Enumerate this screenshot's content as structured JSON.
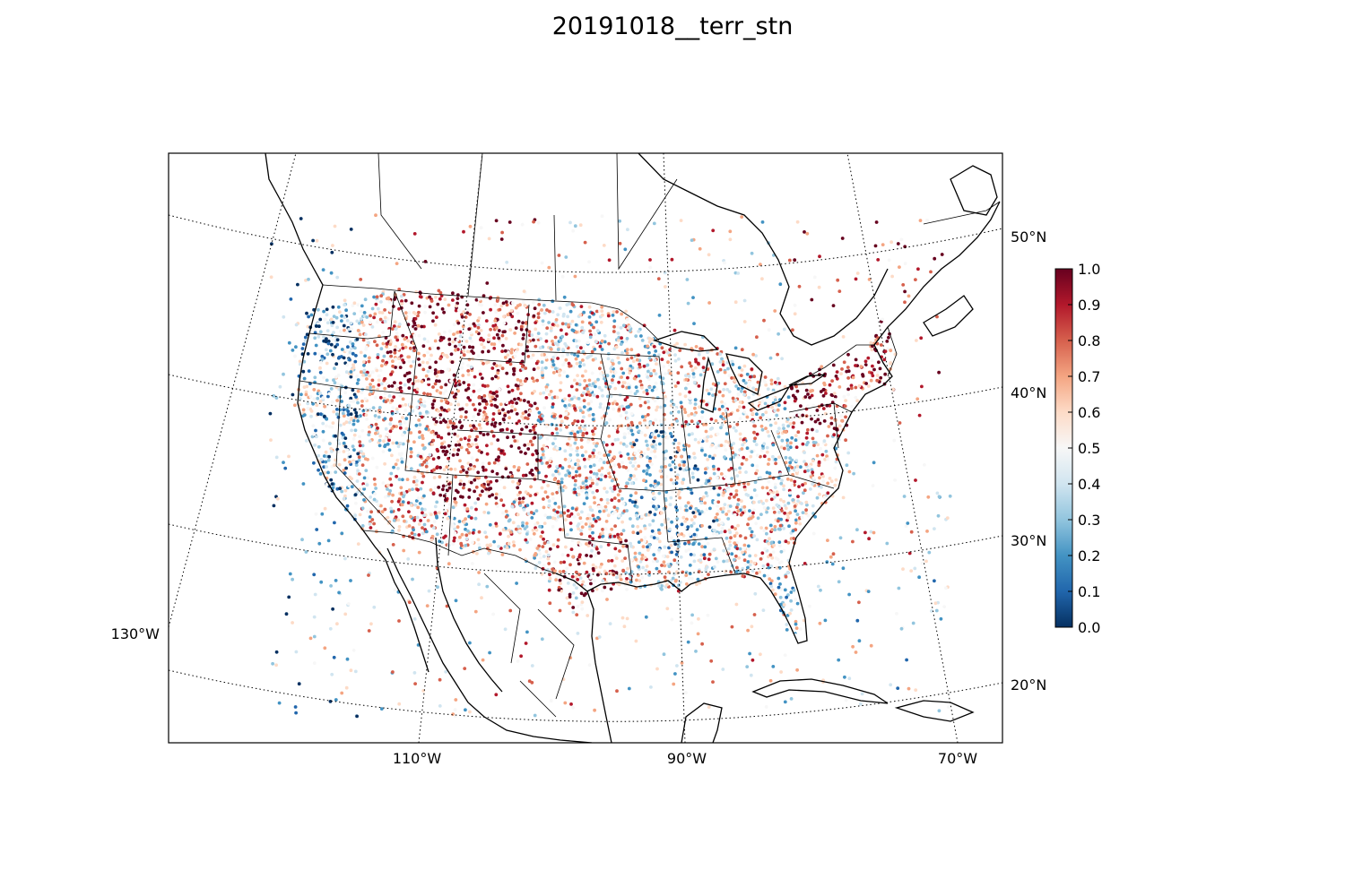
{
  "title": "20191018__terr_stn",
  "map": {
    "projection": "lambert-conformal",
    "background": "#ffffff",
    "coastline_color": "#000000",
    "meridians": [
      {
        "lon": -130,
        "label": "130°W"
      },
      {
        "lon": -110,
        "label": "110°W"
      },
      {
        "lon": -90,
        "label": "90°W"
      },
      {
        "lon": -70,
        "label": "70°W"
      }
    ],
    "parallels": [
      {
        "lat": 20,
        "label": "20°N"
      },
      {
        "lat": 30,
        "label": "30°N"
      },
      {
        "lat": 40,
        "label": "40°N"
      },
      {
        "lat": 50,
        "label": "50°N"
      }
    ],
    "gridline_style": "dotted"
  },
  "colorbar": {
    "colormap": "RdBu_r",
    "min": 0.0,
    "max": 1.0,
    "ticks": [
      "0.0",
      "0.1",
      "0.2",
      "0.3",
      "0.4",
      "0.5",
      "0.6",
      "0.7",
      "0.8",
      "0.9",
      "1.0"
    ],
    "stops": [
      "#053061",
      "#2166ac",
      "#4393c3",
      "#92c5de",
      "#d1e5f0",
      "#f7f7f7",
      "#fddbc7",
      "#f4a582",
      "#d6604d",
      "#b2182b",
      "#67001f"
    ]
  },
  "chart_data": {
    "type": "scatter",
    "title": "20191018__terr_stn",
    "value_range": [
      0,
      1
    ],
    "station_count_shown": "dense (thousands)",
    "regional_tendency": [
      {
        "region": "Pacific Northwest coast",
        "typical_value": 0.2
      },
      {
        "region": "California",
        "typical_value": 0.3
      },
      {
        "region": "Colorado / Utah highlands",
        "typical_value": 0.9
      },
      {
        "region": "Montana / Wyoming",
        "typical_value": 0.8
      },
      {
        "region": "Great Plains",
        "typical_value": 0.6
      },
      {
        "region": "Mississippi valley",
        "typical_value": 0.35
      },
      {
        "region": "Texas coast",
        "typical_value": 0.75
      },
      {
        "region": "Northeast / Mid-Atlantic",
        "typical_value": 0.85
      },
      {
        "region": "Southeast",
        "typical_value": 0.6
      },
      {
        "region": "Florida",
        "typical_value": 0.45
      }
    ]
  }
}
